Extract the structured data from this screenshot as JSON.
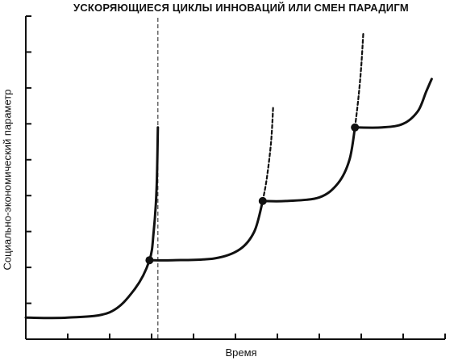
{
  "chart_data": {
    "type": "line",
    "title": "УСКОРЯЮЩИЕСЯ ЦИКЛЫ ИННОВАЦИЙ ИЛИ СМЕН ПАРАДИГМ",
    "xlabel": "Время",
    "ylabel": "Социально-экономический параметр",
    "xlim": [
      0,
      10
    ],
    "ylim": [
      0,
      9
    ],
    "x_ticks": 10,
    "y_ticks": 9,
    "grid": false,
    "series": [
      {
        "segment": "cycle-1",
        "style": "solid",
        "points": [
          [
            0,
            0.6
          ],
          [
            1.0,
            0.6
          ],
          [
            2.0,
            0.75
          ],
          [
            2.6,
            1.4
          ],
          [
            2.95,
            2.2
          ],
          [
            3.05,
            3.0
          ],
          [
            3.12,
            4.2
          ],
          [
            3.15,
            5.9
          ]
        ]
      },
      {
        "segment": "cycle-2",
        "style": "solid",
        "points": [
          [
            2.95,
            2.2
          ],
          [
            3.5,
            2.2
          ],
          [
            4.5,
            2.25
          ],
          [
            5.1,
            2.5
          ],
          [
            5.45,
            3.0
          ],
          [
            5.65,
            3.85
          ]
        ]
      },
      {
        "segment": "cycle-2-extension",
        "style": "dashed",
        "points": [
          [
            5.65,
            3.85
          ],
          [
            5.75,
            4.5
          ],
          [
            5.85,
            5.5
          ],
          [
            5.9,
            6.5
          ]
        ]
      },
      {
        "segment": "cycle-3",
        "style": "solid",
        "points": [
          [
            5.65,
            3.85
          ],
          [
            6.2,
            3.85
          ],
          [
            7.0,
            3.95
          ],
          [
            7.45,
            4.35
          ],
          [
            7.72,
            5.0
          ],
          [
            7.85,
            5.9
          ]
        ]
      },
      {
        "segment": "cycle-3-extension",
        "style": "dashed",
        "points": [
          [
            7.85,
            5.9
          ],
          [
            7.93,
            6.7
          ],
          [
            8.0,
            7.6
          ],
          [
            8.05,
            8.55
          ]
        ]
      },
      {
        "segment": "cycle-4",
        "style": "solid",
        "points": [
          [
            7.85,
            5.9
          ],
          [
            8.5,
            5.9
          ],
          [
            9.0,
            6.0
          ],
          [
            9.35,
            6.35
          ],
          [
            9.55,
            6.9
          ],
          [
            9.68,
            7.25
          ]
        ]
      }
    ],
    "transition_points": [
      [
        2.95,
        2.2
      ],
      [
        5.65,
        3.85
      ],
      [
        7.85,
        5.9
      ]
    ],
    "vertical_reference_line": {
      "x": 3.15,
      "style": "dashed"
    },
    "colors": {
      "line": "#111111",
      "axis": "#111111",
      "reference": "#444444"
    }
  }
}
